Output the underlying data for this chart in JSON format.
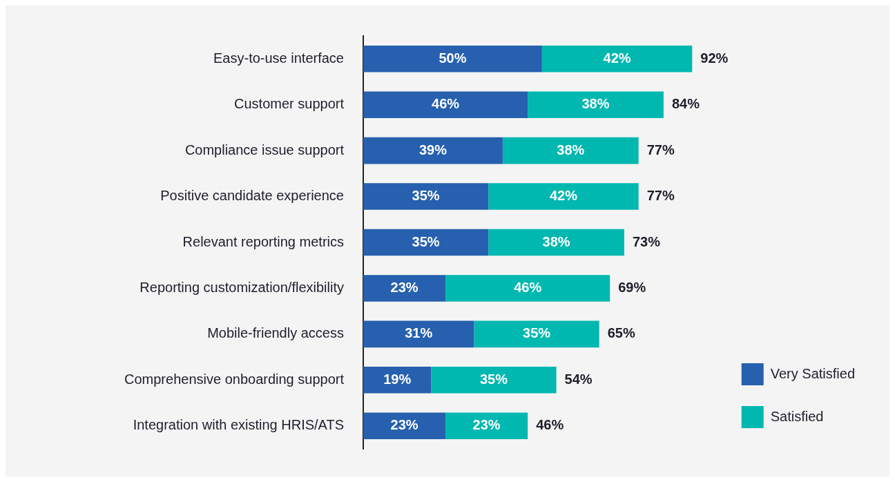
{
  "chart_data": {
    "type": "bar",
    "orientation": "horizontal",
    "stacked": true,
    "categories": [
      "Easy-to-use interface",
      "Customer support",
      "Compliance issue support",
      "Positive candidate experience",
      "Relevant reporting metrics",
      "Reporting customization/flexibility",
      "Mobile-friendly access",
      "Comprehensive onboarding support",
      "Integration with existing HRIS/ATS"
    ],
    "series": [
      {
        "name": "Very Satisfied",
        "color": "#2660ae",
        "values": [
          50,
          46,
          39,
          35,
          35,
          23,
          31,
          19,
          23
        ],
        "value_labels": [
          "50%",
          "46%",
          "39%",
          "35%",
          "35%",
          "23%",
          "31%",
          "19%",
          "23%"
        ]
      },
      {
        "name": "Satisfied",
        "color": "#00b8b0",
        "values": [
          42,
          38,
          38,
          42,
          38,
          46,
          35,
          35,
          23
        ],
        "value_labels": [
          "42%",
          "38%",
          "38%",
          "42%",
          "38%",
          "46%",
          "35%",
          "35%",
          "23%"
        ]
      }
    ],
    "totals": [
      "92%",
      "84%",
      "77%",
      "77%",
      "73%",
      "69%",
      "65%",
      "54%",
      "46%"
    ],
    "legend": "bottom right"
  }
}
